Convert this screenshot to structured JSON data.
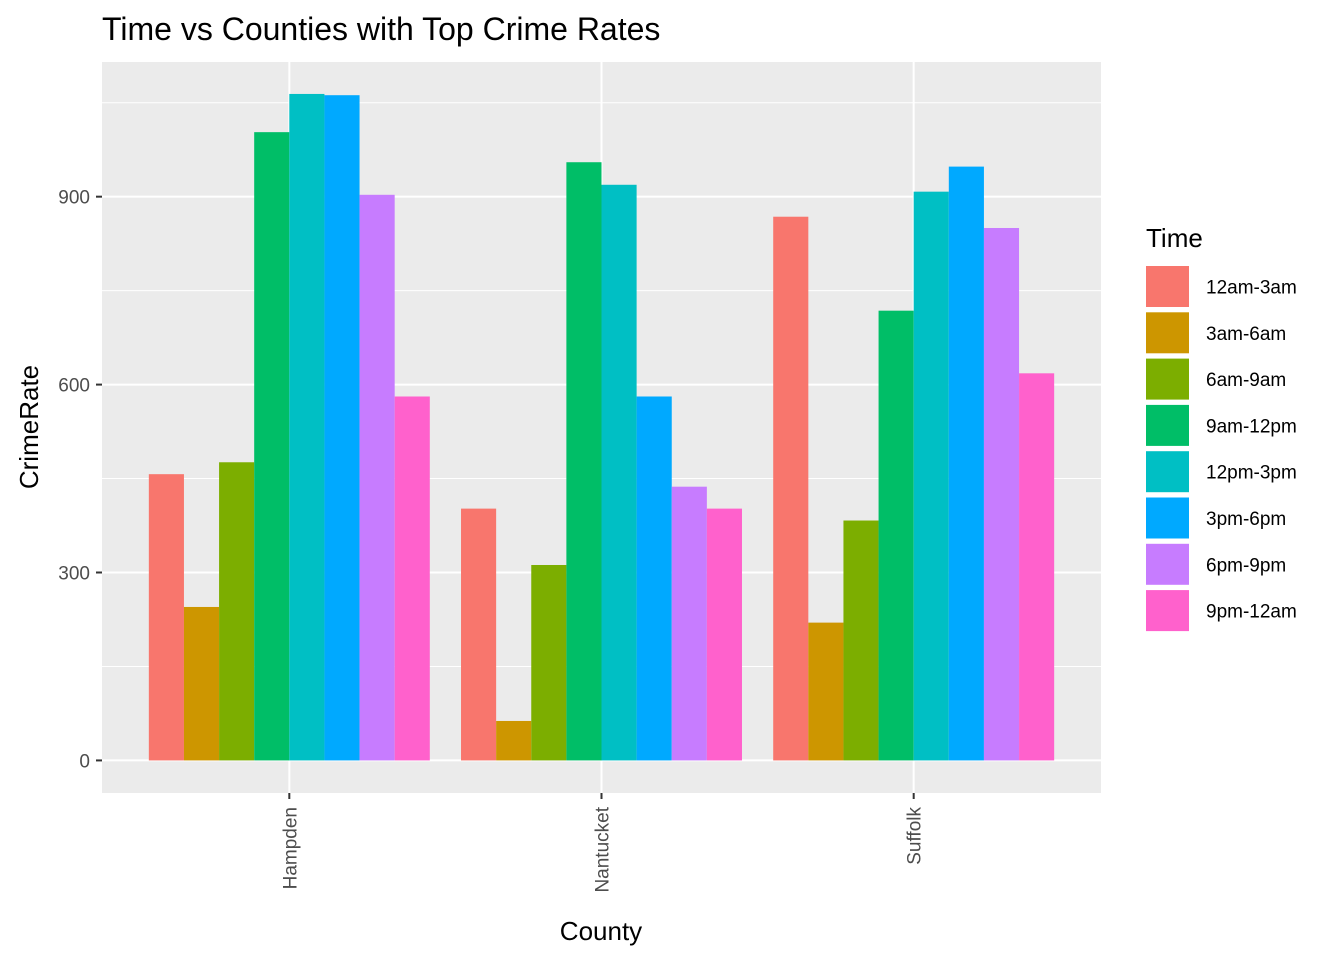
{
  "chart_data": {
    "type": "bar",
    "title": "Time vs Counties with Top Crime Rates",
    "xlabel": "County",
    "ylabel": "CrimeRate",
    "categories": [
      "Hampden",
      "Nantucket",
      "Suffolk"
    ],
    "ylim": [
      -52,
      1115
    ],
    "yticks": [
      0,
      300,
      600,
      900
    ],
    "grid": true,
    "legend": {
      "title": "Time",
      "placement": "right"
    },
    "series": [
      {
        "name": "12am-3am",
        "color": "#F8766D",
        "values": [
          457,
          402,
          868
        ]
      },
      {
        "name": "3am-6am",
        "color": "#CD9600",
        "values": [
          245,
          63,
          220
        ]
      },
      {
        "name": "6am-9am",
        "color": "#7CAE00",
        "values": [
          476,
          312,
          383
        ]
      },
      {
        "name": "9am-12pm",
        "color": "#00BE67",
        "values": [
          1003,
          955,
          718
        ]
      },
      {
        "name": "12pm-3pm",
        "color": "#00BFC4",
        "values": [
          1064,
          919,
          908
        ]
      },
      {
        "name": "3pm-6pm",
        "color": "#00A9FF",
        "values": [
          1062,
          581,
          948
        ]
      },
      {
        "name": "6pm-9pm",
        "color": "#C77CFF",
        "values": [
          903,
          437,
          850
        ]
      },
      {
        "name": "9pm-12am",
        "color": "#FF61CC",
        "values": [
          581,
          402,
          618
        ]
      }
    ]
  }
}
